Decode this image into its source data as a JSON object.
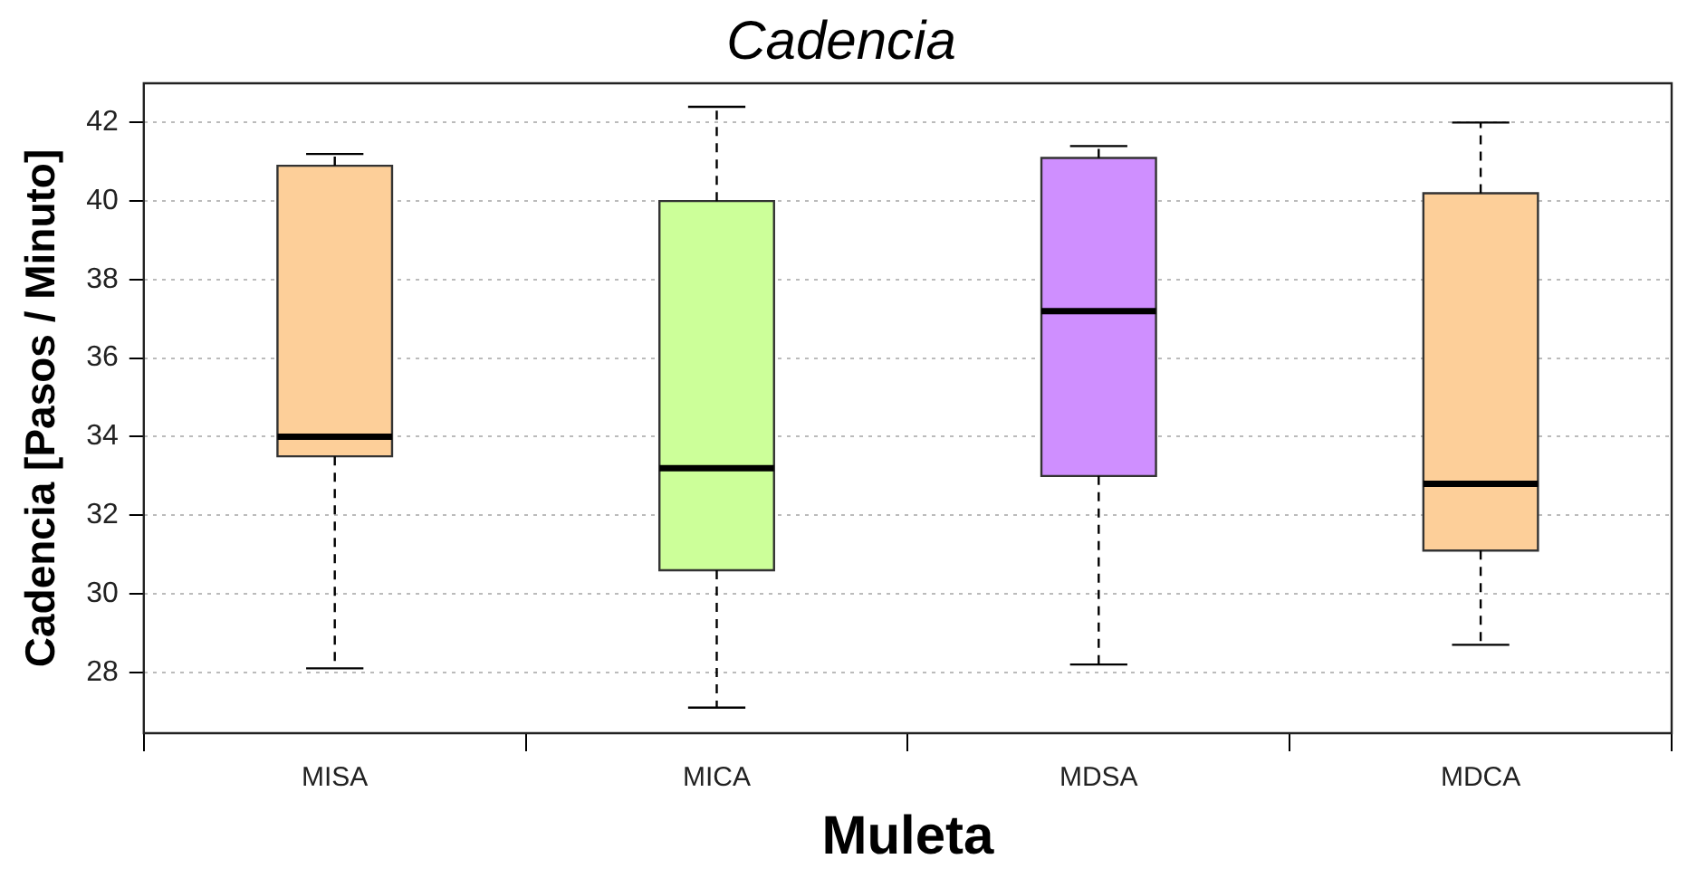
{
  "chart_data": {
    "type": "box",
    "title": "Cadencia",
    "xlabel": "Muleta",
    "ylabel": "Cadencia [Pasos / Minuto]",
    "categories": [
      "MISA",
      "MICA",
      "MDSA",
      "MDCA"
    ],
    "boxes": [
      {
        "low": 28.1,
        "q1": 33.5,
        "median": 34.0,
        "q3": 40.9,
        "high": 41.2
      },
      {
        "low": 27.1,
        "q1": 30.6,
        "median": 33.2,
        "q3": 40.0,
        "high": 42.4
      },
      {
        "low": 28.2,
        "q1": 33.0,
        "median": 37.2,
        "q3": 41.1,
        "high": 41.4
      },
      {
        "low": 28.7,
        "q1": 31.1,
        "median": 32.8,
        "q3": 40.2,
        "high": 42.0
      }
    ],
    "colors": [
      "#fdcf99",
      "#ccff99",
      "#cf8fff",
      "#fdcf99"
    ],
    "ylim": [
      26.45,
      43.0
    ],
    "yticks": [
      28,
      30,
      32,
      34,
      36,
      38,
      40,
      42
    ],
    "grid": "y"
  }
}
